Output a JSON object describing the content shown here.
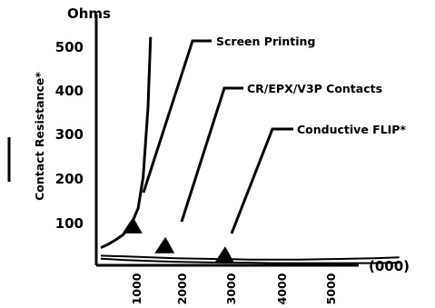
{
  "chart_data": {
    "type": "line",
    "title": "",
    "ylabel": "Contact Resistance*",
    "yunit": "Ohms",
    "xlabel": "(000)",
    "ylim": [
      60,
      580
    ],
    "xlim": [
      0,
      6000
    ],
    "yticks": [
      100,
      200,
      300,
      400,
      500
    ],
    "ytick_labels": [
      "100",
      "200",
      "300",
      "400",
      "500"
    ],
    "xticks": [
      1000,
      2000,
      3000,
      4000,
      5000
    ],
    "xtick_labels": [
      "1000",
      "2000",
      "3000",
      "4000",
      "5000"
    ],
    "grid": false,
    "series": [
      {
        "name": "Screen Printing",
        "x": [
          0,
          150,
          300,
          450,
          600,
          750,
          850,
          950,
          1000
        ],
        "y": [
          100,
          108,
          118,
          130,
          150,
          190,
          260,
          420,
          580
        ]
      },
      {
        "name": "CR/EPX/V3P Contacts",
        "x": [
          0,
          500,
          1000,
          1500,
          2000,
          2500,
          3000,
          3500,
          4000,
          4500,
          5000,
          5500,
          6000
        ],
        "y": [
          82,
          80,
          78,
          76,
          75,
          74,
          73,
          73,
          73,
          74,
          75,
          76,
          78
        ]
      },
      {
        "name": "Conductive FLIP*",
        "x": [
          0,
          500,
          1000,
          1500,
          2000,
          2500,
          3000,
          3500,
          4000,
          4500,
          5000,
          5500,
          6000
        ],
        "y": [
          75,
          72,
          70,
          68,
          67,
          66,
          66,
          65,
          65,
          65,
          65,
          65,
          66
        ]
      }
    ],
    "annotations": [
      {
        "text": "Screen Printing",
        "x": 650,
        "y": 145
      },
      {
        "text": "CR/EPX/V3P Contacts",
        "x": 1300,
        "y": 100
      },
      {
        "text": "Conductive FLIP*",
        "x": 2500,
        "y": 78
      }
    ]
  }
}
